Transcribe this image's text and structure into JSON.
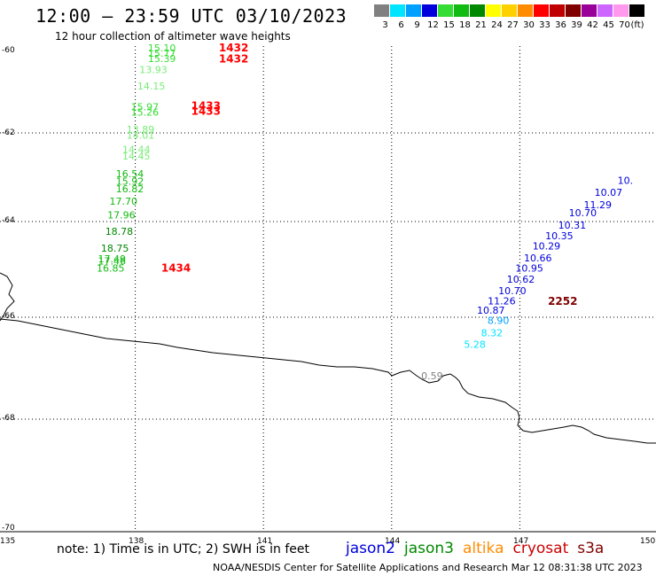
{
  "header": {
    "title": "12:00 – 23:59 UTC 03/10/2023",
    "subtitle": "12 hour collection of altimeter wave heights"
  },
  "legend": {
    "unit": "(ft)",
    "bins": [
      {
        "label": "3",
        "color": "#808080"
      },
      {
        "label": "6",
        "color": "#00e5ff"
      },
      {
        "label": "9",
        "color": "#00a0ff"
      },
      {
        "label": "12",
        "color": "#0000dd"
      },
      {
        "label": "15",
        "color": "#33dd33"
      },
      {
        "label": "18",
        "color": "#11bb11"
      },
      {
        "label": "21",
        "color": "#008800"
      },
      {
        "label": "24",
        "color": "#ffff00"
      },
      {
        "label": "27",
        "color": "#ffd000"
      },
      {
        "label": "30",
        "color": "#ff8c00"
      },
      {
        "label": "33",
        "color": "#ff0000"
      },
      {
        "label": "36",
        "color": "#c00000"
      },
      {
        "label": "39",
        "color": "#800000"
      },
      {
        "label": "42",
        "color": "#990099"
      },
      {
        "label": "45",
        "color": "#cc66ff"
      },
      {
        "label": "70",
        "color": "#ff99ee"
      },
      {
        "label": "",
        "color": "#000000"
      }
    ]
  },
  "axes": {
    "lat_labels": [
      "-60",
      "-62",
      "-64",
      "-66",
      "-68",
      "-70"
    ],
    "lon_labels": [
      "135",
      "138",
      "141",
      "144",
      "147",
      "150"
    ]
  },
  "observations": [
    {
      "text": "15.10",
      "lat": -60.02,
      "lon": 138.95,
      "color": "#33dd33"
    },
    {
      "text": "15.77",
      "lat": -60.15,
      "lon": 138.95,
      "color": "#33dd33"
    },
    {
      "text": "15.39",
      "lat": -60.28,
      "lon": 138.95,
      "color": "#33dd33"
    },
    {
      "text": "13.93",
      "lat": -60.55,
      "lon": 138.75,
      "color": "#77ee77"
    },
    {
      "text": "14.15",
      "lat": -60.95,
      "lon": 138.7,
      "color": "#77ee77"
    },
    {
      "text": "15.97",
      "lat": -61.45,
      "lon": 138.55,
      "color": "#33dd33"
    },
    {
      "text": "15.26",
      "lat": -61.58,
      "lon": 138.55,
      "color": "#33dd33"
    },
    {
      "text": "13.89",
      "lat": -62.0,
      "lon": 138.45,
      "color": "#77ee77"
    },
    {
      "text": "14.01",
      "lat": -62.13,
      "lon": 138.45,
      "color": "#77ee77"
    },
    {
      "text": "14.44",
      "lat": -62.45,
      "lon": 138.35,
      "color": "#77ee77"
    },
    {
      "text": "14.45",
      "lat": -62.6,
      "lon": 138.35,
      "color": "#77ee77"
    },
    {
      "text": "16.54",
      "lat": -63.0,
      "lon": 138.2,
      "color": "#11bb11"
    },
    {
      "text": "15.92",
      "lat": -63.17,
      "lon": 138.2,
      "color": "#11bb11"
    },
    {
      "text": "16.82",
      "lat": -63.34,
      "lon": 138.2,
      "color": "#11bb11"
    },
    {
      "text": "17.70",
      "lat": -63.62,
      "lon": 138.05,
      "color": "#11bb11"
    },
    {
      "text": "17.96",
      "lat": -63.93,
      "lon": 138.0,
      "color": "#11bb11"
    },
    {
      "text": "18.78",
      "lat": -64.28,
      "lon": 137.95,
      "color": "#008800"
    },
    {
      "text": "18.75",
      "lat": -64.63,
      "lon": 137.85,
      "color": "#008800"
    },
    {
      "text": "17.49",
      "lat": -64.85,
      "lon": 137.78,
      "color": "#11bb11"
    },
    {
      "text": "17.46",
      "lat": -64.9,
      "lon": 137.78,
      "color": "#11bb11"
    },
    {
      "text": "16.85",
      "lat": -65.05,
      "lon": 137.75,
      "color": "#11bb11"
    },
    {
      "text": "10.",
      "lat": -63.15,
      "lon": 149.65,
      "color": "#0000dd"
    },
    {
      "text": "10.07",
      "lat": -63.42,
      "lon": 149.4,
      "color": "#0000dd"
    },
    {
      "text": "11.29",
      "lat": -63.7,
      "lon": 149.15,
      "color": "#0000dd"
    },
    {
      "text": "10.70",
      "lat": -63.88,
      "lon": 148.8,
      "color": "#0000dd"
    },
    {
      "text": "10.31",
      "lat": -64.15,
      "lon": 148.55,
      "color": "#0000dd"
    },
    {
      "text": "10.35",
      "lat": -64.37,
      "lon": 148.25,
      "color": "#0000dd"
    },
    {
      "text": "10.29",
      "lat": -64.58,
      "lon": 147.95,
      "color": "#0000dd"
    },
    {
      "text": "10.66",
      "lat": -64.83,
      "lon": 147.75,
      "color": "#0000dd"
    },
    {
      "text": "10.95",
      "lat": -65.05,
      "lon": 147.55,
      "color": "#0000dd"
    },
    {
      "text": "10.62",
      "lat": -65.28,
      "lon": 147.35,
      "color": "#0000dd"
    },
    {
      "text": "10.70",
      "lat": -65.52,
      "lon": 147.15,
      "color": "#0000dd"
    },
    {
      "text": "11.26",
      "lat": -65.73,
      "lon": 146.9,
      "color": "#0000dd"
    },
    {
      "text": "10.87",
      "lat": -65.93,
      "lon": 146.65,
      "color": "#0000dd"
    },
    {
      "text": "8.90",
      "lat": -66.13,
      "lon": 146.75,
      "color": "#00a0ff"
    },
    {
      "text": "8.32",
      "lat": -66.37,
      "lon": 146.6,
      "color": "#00e5ff"
    },
    {
      "text": "5.28",
      "lat": -66.6,
      "lon": 146.2,
      "color": "#00e5ff"
    },
    {
      "text": "0.59",
      "lat": -67.22,
      "lon": 145.2,
      "color": "#808080"
    }
  ],
  "time_labels": [
    {
      "text": "1432",
      "lat": -60.02,
      "lon": 140.65,
      "color": "#ff0000"
    },
    {
      "text": "1432",
      "lat": -60.29,
      "lon": 140.65,
      "color": "#ff0000"
    },
    {
      "text": "1433",
      "lat": -61.43,
      "lon": 140.0,
      "color": "#ff0000"
    },
    {
      "text": "1433",
      "lat": -61.56,
      "lon": 140.0,
      "color": "#ff0000"
    },
    {
      "text": "1434",
      "lat": -65.05,
      "lon": 139.3,
      "color": "#ff0000"
    },
    {
      "text": "2252",
      "lat": -65.74,
      "lon": 148.35,
      "color": "#800000"
    }
  ],
  "footer": {
    "note": "note:  1) Time is in UTC;  2) SWH is in feet",
    "satellites": [
      {
        "name": "jason2",
        "color": "#0000dd"
      },
      {
        "name": "jason3",
        "color": "#008800"
      },
      {
        "name": "altika",
        "color": "#ff8c00"
      },
      {
        "name": "cryosat",
        "color": "#cc0000"
      },
      {
        "name": "s3a",
        "color": "#800000"
      }
    ],
    "credit": "NOAA/NESDIS Center for Satellite Applications and Research    Mar 12 08:31:38 UTC 2023"
  }
}
